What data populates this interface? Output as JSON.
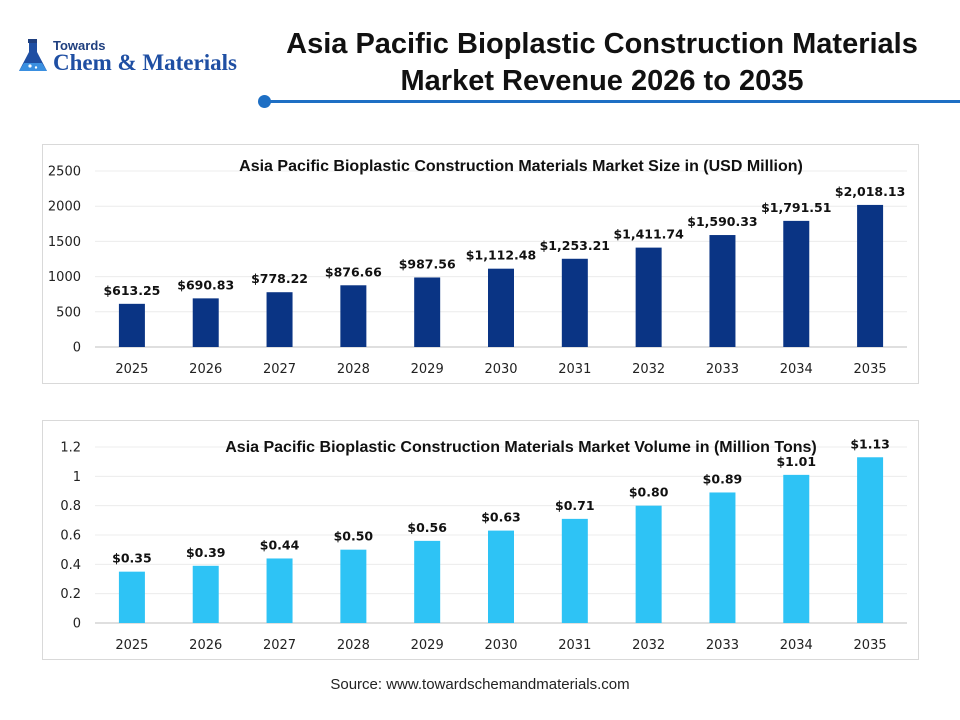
{
  "logo": {
    "top_text": "Towards",
    "main_text": "Chem & Materials"
  },
  "title": {
    "line1": "Asia Pacific Bioplastic Construction Materials",
    "line2": "Market Revenue 2026 to 2035"
  },
  "colors": {
    "accent": "#1e6fc4",
    "bar_revenue": "#0a3484",
    "bar_volume": "#2ec3f5"
  },
  "source": "Source: www.towardschemandmaterials.com",
  "chart_data": [
    {
      "type": "bar",
      "title": "Asia Pacific Bioplastic Construction Materials Market Size in (USD Million)",
      "categories": [
        "2025",
        "2026",
        "2027",
        "2028",
        "2029",
        "2030",
        "2031",
        "2032",
        "2033",
        "2034",
        "2035"
      ],
      "values": [
        613.25,
        690.83,
        778.22,
        876.66,
        987.56,
        1112.48,
        1253.21,
        1411.74,
        1590.33,
        1791.51,
        2018.13
      ],
      "data_labels": [
        "$613.25",
        "$690.83",
        "$778.22",
        "$876.66",
        "$987.56",
        "$1,112.48",
        "$1,253.21",
        "$1,411.74",
        "$1,590.33",
        "$1,791.51",
        "$2,018.13"
      ],
      "yticks": [
        "0",
        "500",
        "1000",
        "1500",
        "2000",
        "2500"
      ],
      "ylim": [
        0,
        2500
      ],
      "grid": true,
      "color": "#0a3484"
    },
    {
      "type": "bar",
      "title": "Asia Pacific Bioplastic Construction Materials Market Volume in (Million Tons)",
      "categories": [
        "2025",
        "2026",
        "2027",
        "2028",
        "2029",
        "2030",
        "2031",
        "2032",
        "2033",
        "2034",
        "2035"
      ],
      "values": [
        0.35,
        0.39,
        0.44,
        0.5,
        0.56,
        0.63,
        0.71,
        0.8,
        0.89,
        1.01,
        1.13
      ],
      "data_labels": [
        "$0.35",
        "$0.39",
        "$0.44",
        "$0.50",
        "$0.56",
        "$0.63",
        "$0.71",
        "$0.80",
        "$0.89",
        "$1.01",
        "$1.13"
      ],
      "yticks": [
        "0",
        "0.2",
        "0.4",
        "0.6",
        "0.8",
        "1",
        "1.2"
      ],
      "ylim": [
        0,
        1.2
      ],
      "grid": true,
      "color": "#2ec3f5"
    }
  ]
}
